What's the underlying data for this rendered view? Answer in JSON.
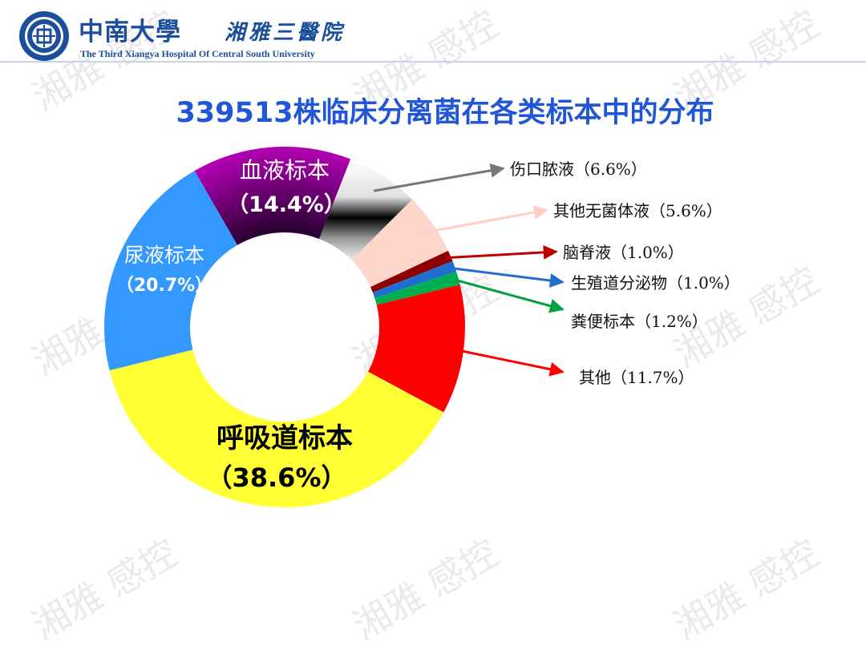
{
  "header": {
    "university": "中南大學",
    "hospital": "湘雅三醫院",
    "hospital_en": "The Third Xiangya Hospital Of Central South University"
  },
  "watermark_text": "湘雅 感控",
  "colors": {
    "brand_blue": "#1b4f9c",
    "title_blue": "#2156d6"
  },
  "chart_data": {
    "type": "pie",
    "donut": true,
    "title": "339513株临床分离菌在各类标本中的分布",
    "slices": [
      {
        "name": "血液标本",
        "value": 14.4,
        "pct_label": "（14.4%）",
        "color": "#cc00cc",
        "color2": "#2b0033",
        "label_inside": true
      },
      {
        "name": "伤口脓液",
        "value": 6.6,
        "pct_label": "（6.6%）",
        "color": "#ffffff",
        "color2": "#000000",
        "label_inside": false,
        "arrow_color": "#777777"
      },
      {
        "name": "其他无菌体液",
        "value": 5.6,
        "pct_label": "（5.6%）",
        "color": "#ffd6cc",
        "label_inside": false,
        "arrow_color": "#ffcfc5"
      },
      {
        "name": "脑脊液",
        "value": 1.0,
        "pct_label": "（1.0%）",
        "color": "#8b0000",
        "label_inside": false,
        "arrow_color": "#c00000"
      },
      {
        "name": "生殖道分泌物",
        "value": 1.0,
        "pct_label": "（1.0%）",
        "color": "#1f6fd1",
        "label_inside": false,
        "arrow_color": "#1f6fd1"
      },
      {
        "name": "粪便标本",
        "value": 1.2,
        "pct_label": "（1.2%）",
        "color": "#00b050",
        "label_inside": false,
        "arrow_color": "#00a040"
      },
      {
        "name": "其他",
        "value": 11.7,
        "pct_label": "（11.7%）",
        "color": "#ff0000",
        "label_inside": false,
        "arrow_color": "#ff0000"
      },
      {
        "name": "呼吸道标本",
        "value": 38.6,
        "pct_label": "（38.6%）",
        "color": "#ffff33",
        "label_inside": true
      },
      {
        "name": "尿液标本",
        "value": 20.7,
        "pct_label": "（20.7%）",
        "color": "#3399ff",
        "label_inside": true
      }
    ]
  }
}
